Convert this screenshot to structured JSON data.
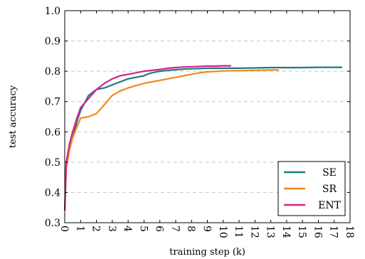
{
  "chart_data": {
    "type": "line",
    "title": "",
    "xlabel": "training step (k)",
    "ylabel": "test accuracy",
    "xlim": [
      0,
      18
    ],
    "ylim": [
      0.3,
      1.0
    ],
    "x_ticks": [
      0,
      1,
      2,
      3,
      4,
      5,
      6,
      7,
      8,
      9,
      10,
      11,
      12,
      13,
      14,
      15,
      16,
      17,
      18
    ],
    "y_ticks": [
      0.3,
      0.4,
      0.5,
      0.6,
      0.7,
      0.8,
      0.9,
      1.0
    ],
    "x_tick_labels": [
      "0",
      "1",
      "2",
      "3",
      "4",
      "5",
      "6",
      "7",
      "8",
      "9",
      "10",
      "11",
      "12",
      "13",
      "14",
      "15",
      "16",
      "17",
      "18"
    ],
    "y_tick_labels": [
      "0.3",
      "0.4",
      "0.5",
      "0.6",
      "0.7",
      "0.8",
      "0.9",
      "1.0"
    ],
    "grid": "horizontal dashed",
    "legend_position": "bottom-right",
    "series": [
      {
        "name": "SE",
        "color": "#1f7a82",
        "points": [
          [
            0,
            0.34
          ],
          [
            0.1,
            0.5
          ],
          [
            0.3,
            0.55
          ],
          [
            0.5,
            0.58
          ],
          [
            0.8,
            0.64
          ],
          [
            1.0,
            0.67
          ],
          [
            1.5,
            0.72
          ],
          [
            2.0,
            0.74
          ],
          [
            2.5,
            0.745
          ],
          [
            3.0,
            0.755
          ],
          [
            3.5,
            0.765
          ],
          [
            4.0,
            0.775
          ],
          [
            4.5,
            0.78
          ],
          [
            5.0,
            0.785
          ],
          [
            5.2,
            0.79
          ],
          [
            5.5,
            0.795
          ],
          [
            6.0,
            0.8
          ],
          [
            6.5,
            0.803
          ],
          [
            7.0,
            0.805
          ],
          [
            7.5,
            0.807
          ],
          [
            8.0,
            0.808
          ],
          [
            9.0,
            0.81
          ],
          [
            10.0,
            0.81
          ],
          [
            11.0,
            0.81
          ],
          [
            12.0,
            0.811
          ],
          [
            13.0,
            0.812
          ],
          [
            14.0,
            0.812
          ],
          [
            15.0,
            0.812
          ],
          [
            16.0,
            0.813
          ],
          [
            17.0,
            0.813
          ],
          [
            17.5,
            0.813
          ]
        ]
      },
      {
        "name": "SR",
        "color": "#f08a1c",
        "points": [
          [
            0,
            0.34
          ],
          [
            0.1,
            0.48
          ],
          [
            0.3,
            0.54
          ],
          [
            0.5,
            0.58
          ],
          [
            0.8,
            0.62
          ],
          [
            1.0,
            0.645
          ],
          [
            1.5,
            0.65
          ],
          [
            2.0,
            0.66
          ],
          [
            2.5,
            0.69
          ],
          [
            3.0,
            0.72
          ],
          [
            3.5,
            0.735
          ],
          [
            4.0,
            0.745
          ],
          [
            4.5,
            0.753
          ],
          [
            5.0,
            0.76
          ],
          [
            5.5,
            0.765
          ],
          [
            6.0,
            0.77
          ],
          [
            6.5,
            0.775
          ],
          [
            7.0,
            0.78
          ],
          [
            7.5,
            0.785
          ],
          [
            8.0,
            0.79
          ],
          [
            8.5,
            0.795
          ],
          [
            9.0,
            0.798
          ],
          [
            10.0,
            0.801
          ],
          [
            11.0,
            0.802
          ],
          [
            12.0,
            0.803
          ],
          [
            13.0,
            0.804
          ],
          [
            13.5,
            0.804
          ]
        ]
      },
      {
        "name": "ENT",
        "color": "#d1258a",
        "points": [
          [
            0,
            0.34
          ],
          [
            0.1,
            0.5
          ],
          [
            0.3,
            0.56
          ],
          [
            0.5,
            0.6
          ],
          [
            0.8,
            0.65
          ],
          [
            1.0,
            0.68
          ],
          [
            1.5,
            0.71
          ],
          [
            2.0,
            0.74
          ],
          [
            2.5,
            0.76
          ],
          [
            3.0,
            0.775
          ],
          [
            3.5,
            0.785
          ],
          [
            4.0,
            0.79
          ],
          [
            4.5,
            0.795
          ],
          [
            5.0,
            0.8
          ],
          [
            5.5,
            0.803
          ],
          [
            6.0,
            0.806
          ],
          [
            6.5,
            0.81
          ],
          [
            7.0,
            0.812
          ],
          [
            7.5,
            0.814
          ],
          [
            8.0,
            0.815
          ],
          [
            8.5,
            0.816
          ],
          [
            9.0,
            0.817
          ],
          [
            9.5,
            0.817
          ],
          [
            10.0,
            0.818
          ],
          [
            10.5,
            0.818
          ]
        ]
      }
    ]
  }
}
